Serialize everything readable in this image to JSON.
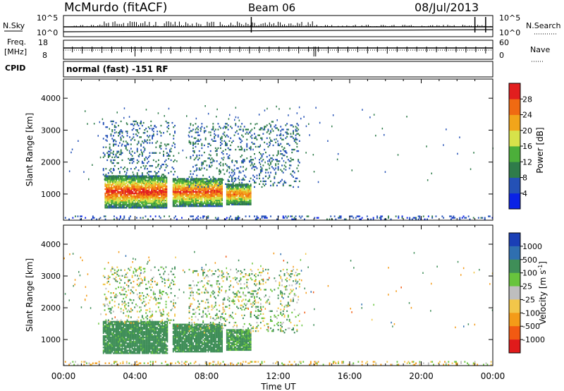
{
  "header": {
    "station": "McMurdo (fitACF)",
    "beam": "Beam 06",
    "date": "08/Jul/2013"
  },
  "small_panels": {
    "nsky_label": "N.Sky",
    "nsky_ticks": [
      "10^5",
      "10^0"
    ],
    "nsearch_label": "N.Search",
    "nsearch_ticks": [
      "10^5",
      "10^0"
    ],
    "freq_label": "Freq.",
    "freq_unit": "[MHz]",
    "freq_ticks": [
      "18",
      "8"
    ],
    "nave_label": "Nave",
    "nave_ticks": [
      "60",
      "0"
    ],
    "cpid_label": "CPID",
    "cpid_value": "normal (fast) -151 RF"
  },
  "colors": {
    "power_scale": [
      "#0a22e6",
      "#2451b6",
      "#2f7c4a",
      "#4caf3a",
      "#d7e24a",
      "#f2a51a",
      "#f06a12",
      "#e21e1e"
    ],
    "velocity_scale": [
      "#e01b1b",
      "#f25a12",
      "#f49b18",
      "#f2c64a",
      "#bebebe",
      "#68c43d",
      "#3f8e58",
      "#2f6fb0",
      "#1a3fb6"
    ]
  },
  "chart_data": [
    {
      "type": "heatmap",
      "panel": "power",
      "xlabel": "Time UT",
      "ylabel": "Slant Range [km]",
      "xlim": [
        0,
        24
      ],
      "ylim": [
        180,
        4600
      ],
      "x_ticks": [
        "00:00",
        "04:00",
        "08:00",
        "12:00",
        "16:00",
        "20:00",
        "00:00"
      ],
      "y_ticks": [
        "1000",
        "2000",
        "3000",
        "4000"
      ],
      "colorbar_label": "Power [dB]",
      "colorbar_ticks": [
        "4",
        "8",
        "12",
        "16",
        "20",
        "24",
        "28"
      ],
      "echo_regions": [
        {
          "t_start": 2.3,
          "t_end": 5.8,
          "range_min": 550,
          "range_max": 1550,
          "power_db": 26
        },
        {
          "t_start": 6.1,
          "t_end": 8.9,
          "range_min": 600,
          "range_max": 1500,
          "power_db": 24
        },
        {
          "t_start": 9.1,
          "t_end": 10.5,
          "range_min": 650,
          "range_max": 1300,
          "power_db": 22
        },
        {
          "t_start": 2.2,
          "t_end": 6.2,
          "range_min": 1500,
          "range_max": 3300,
          "power_db": 8
        },
        {
          "t_start": 7.0,
          "t_end": 13.2,
          "range_min": 1200,
          "range_max": 3200,
          "power_db": 8
        },
        {
          "t_start": 0.0,
          "t_end": 24.0,
          "range_min": 190,
          "range_max": 320,
          "power_db": 6
        }
      ]
    },
    {
      "type": "heatmap",
      "panel": "velocity",
      "xlabel": "Time UT",
      "ylabel": "Slant Range [km]",
      "xlim": [
        0,
        24
      ],
      "ylim": [
        180,
        4600
      ],
      "x_ticks": [
        "00:00",
        "04:00",
        "08:00",
        "12:00",
        "16:00",
        "20:00",
        "00:00"
      ],
      "y_ticks": [
        "1000",
        "2000",
        "3000",
        "4000"
      ],
      "colorbar_label": "Velocity [m s^-1]",
      "colorbar_ticks": [
        "1000",
        "500",
        "100",
        "25",
        "-25",
        "-100",
        "-500",
        "-1000"
      ],
      "echo_regions": [
        {
          "t_start": 2.2,
          "t_end": 5.8,
          "range_min": 550,
          "range_max": 1550,
          "velocity": 150
        },
        {
          "t_start": 6.1,
          "t_end": 8.9,
          "range_min": 600,
          "range_max": 1500,
          "velocity": 150
        },
        {
          "t_start": 9.1,
          "t_end": 10.5,
          "range_min": 650,
          "range_max": 1300,
          "velocity": 120
        },
        {
          "t_start": 2.2,
          "t_end": 6.2,
          "range_min": 1500,
          "range_max": 3300,
          "velocity": 40
        },
        {
          "t_start": 7.0,
          "t_end": 13.2,
          "range_min": 1200,
          "range_max": 3200,
          "velocity": 60
        },
        {
          "t_start": 0.0,
          "t_end": 24.0,
          "range_min": 190,
          "range_max": 320,
          "velocity": -50
        }
      ]
    }
  ]
}
